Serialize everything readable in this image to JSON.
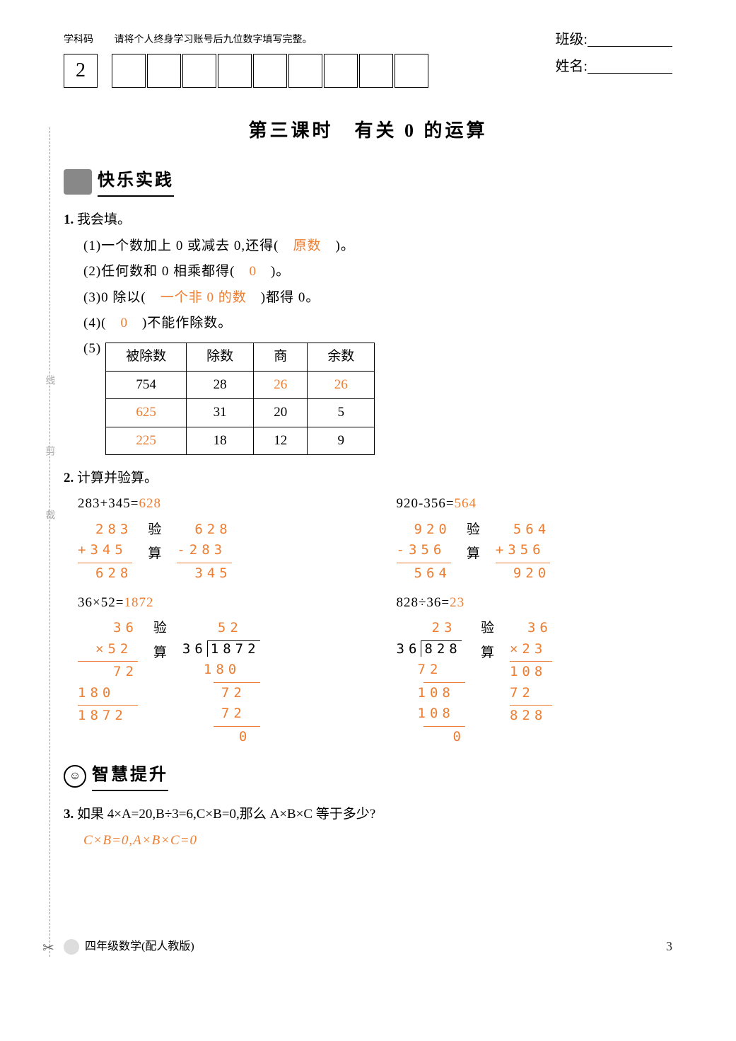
{
  "header": {
    "code_label": "学科码",
    "instruction": "请将个人终身学习账号后九位数字填写完整。",
    "first_digit": "2",
    "class_label": "班级:",
    "name_label": "姓名:"
  },
  "lesson_title": "第三课时　有关 0 的运算",
  "section1": {
    "title": "快乐实践"
  },
  "q1": {
    "num": "1.",
    "stem": "我会填。",
    "s1_pre": "(1)一个数加上 0 或减去 0,还得(　",
    "s1_ans": "原数",
    "s1_post": "　)。",
    "s2_pre": "(2)任何数和 0 相乘都得(　",
    "s2_ans": "0",
    "s2_post": "　)。",
    "s3_pre": "(3)0 除以(　",
    "s3_ans": "一个非 0 的数",
    "s3_post": "　)都得 0。",
    "s4_pre": "(4)(　",
    "s4_ans": "0",
    "s4_post": "　)不能作除数。",
    "s5_label": "(5)",
    "table": {
      "headers": [
        "被除数",
        "除数",
        "商",
        "余数"
      ],
      "rows": [
        {
          "c1": "754",
          "c2": "28",
          "c3": "26",
          "c4": "26",
          "ans_cols": [
            2,
            3
          ]
        },
        {
          "c1": "625",
          "c2": "31",
          "c3": "20",
          "c4": "5",
          "ans_cols": [
            0
          ]
        },
        {
          "c1": "225",
          "c2": "18",
          "c3": "12",
          "c4": "9",
          "ans_cols": [
            0
          ]
        }
      ]
    }
  },
  "q2": {
    "num": "2.",
    "stem": "计算并验算。",
    "check_label_1": "验",
    "check_label_2": "算",
    "items": [
      {
        "eq_lhs": "283+345=",
        "eq_ans": "628",
        "main": [
          "　283",
          "+345",
          "rule",
          "　628"
        ],
        "check": [
          "　628",
          "-283",
          "rule",
          "　345"
        ]
      },
      {
        "eq_lhs": "920-356=",
        "eq_ans": "564",
        "main": [
          "　920",
          "-356",
          "rule",
          "　564"
        ],
        "check": [
          "　564",
          "+356",
          "rule",
          "　920"
        ]
      },
      {
        "eq_lhs": "36×52=",
        "eq_ans": "1872",
        "main": [
          "　　36",
          "　×52",
          "rule",
          "　　72",
          "180",
          "rule",
          "1872"
        ],
        "check_type": "longdiv",
        "check_quotient": "　　52",
        "check_divisor": "36",
        "check_dividend": "1872",
        "check_body": [
          "180",
          "rule-s",
          "　72",
          "　72",
          "rule-s",
          "　　0"
        ]
      },
      {
        "eq_lhs": "828÷36=",
        "eq_ans": "23",
        "main_type": "longdiv",
        "main_quotient": "　　23",
        "main_divisor": "36",
        "main_dividend": "828",
        "main_body": [
          "72",
          "rule-s",
          "108",
          "108",
          "rule-s",
          "　　0"
        ],
        "check": [
          "　36",
          "×23",
          "rule",
          "108",
          "72",
          "rule",
          "828"
        ]
      }
    ]
  },
  "section2": {
    "title": "智慧提升",
    "icon_inner": "☺"
  },
  "q3": {
    "num": "3.",
    "stem": "如果 4×A=20,B÷3=6,C×B=0,那么 A×B×C 等于多少?",
    "answer": "C×B=0,A×B×C=0"
  },
  "cut_labels": [
    "线",
    "剪",
    "裁"
  ],
  "footer": {
    "text": "四年级数学(配人教版)",
    "page": "3"
  },
  "colors": {
    "answer": "#ed7d31",
    "text": "#000000",
    "background": "#ffffff"
  }
}
